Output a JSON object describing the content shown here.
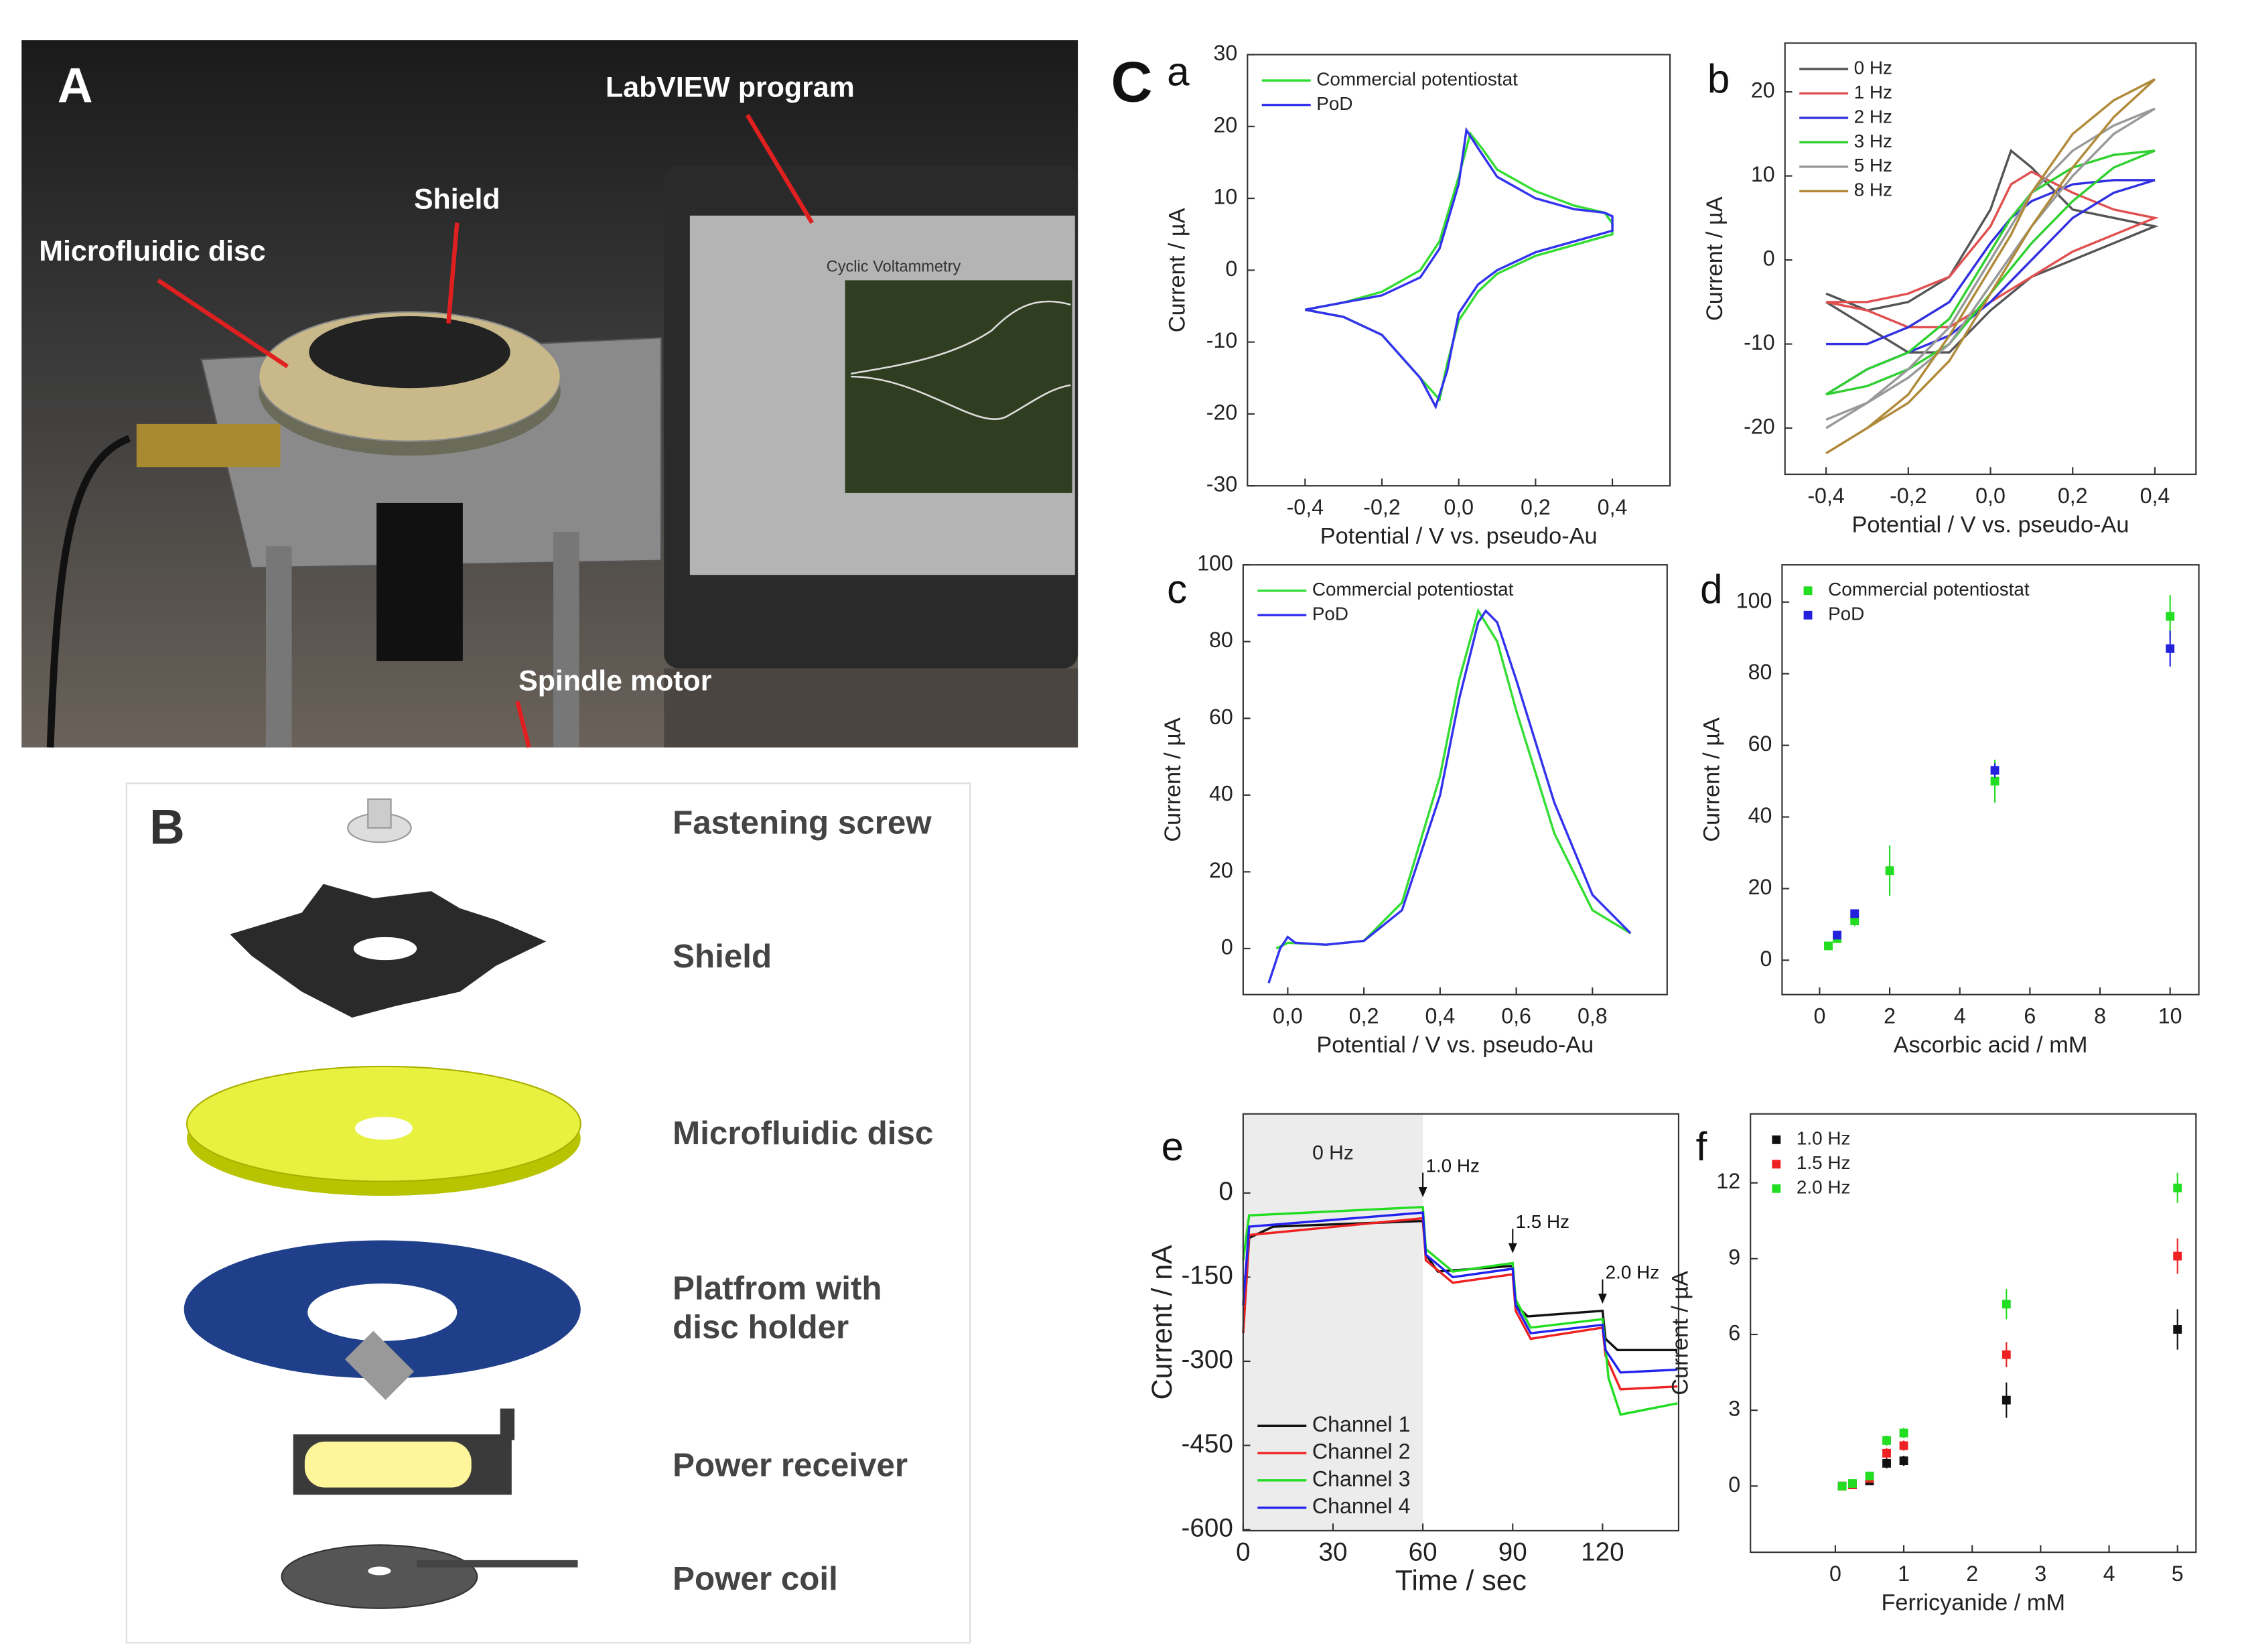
{
  "photo": {
    "label": "A",
    "annotations": [
      "LabVIEW program",
      "Shield",
      "Microfluidic disc",
      "Spindle motor"
    ],
    "screen_title": "Cyclic Voltammetry"
  },
  "diagram": {
    "label": "B",
    "parts": [
      [
        "Fastening screw"
      ],
      [
        "Shield"
      ],
      [
        "Microfluidic disc"
      ],
      [
        "Platfrom with",
        "disc holder"
      ],
      [
        "Power receiver"
      ],
      [
        "Power coil"
      ]
    ]
  },
  "panel_group_label": "C",
  "chart_data": [
    {
      "type": "line",
      "panel_label": "a",
      "xlabel": "Potential / V vs. pseudo-Au",
      "ylabel": "Current / µA",
      "legend": "upper left",
      "xlim": [
        -0.55,
        0.55
      ],
      "xticks": [
        {
          "value": -0.4,
          "label": "-0,4"
        },
        {
          "value": -0.2,
          "label": "-0,2"
        },
        {
          "value": 0,
          "label": "0,0"
        },
        {
          "value": 0.2,
          "label": "0,2"
        },
        {
          "value": 0.4,
          "label": "0,4"
        }
      ],
      "ylim": [
        -30,
        30
      ],
      "yticks": [
        -30,
        -20,
        -10,
        0,
        10,
        20,
        30
      ],
      "series": [
        {
          "name": "Commercial potentiostat",
          "color": "#33dd33",
          "x": [
            -0.4,
            -0.3,
            -0.2,
            -0.1,
            -0.05,
            0,
            0.03,
            0.06,
            0.1,
            0.2,
            0.3,
            0.38,
            0.4,
            0.4,
            0.3,
            0.2,
            0.1,
            0.05,
            0,
            -0.03,
            -0.05,
            -0.1,
            -0.2,
            -0.3,
            -0.4
          ],
          "values": [
            -5.5,
            -4.5,
            -3,
            0,
            4,
            13,
            19,
            17,
            14,
            11,
            9,
            8,
            6.5,
            5,
            3.5,
            2,
            -0.5,
            -3,
            -7,
            -13,
            -18,
            -15,
            -9,
            -6.5,
            -5.5
          ]
        },
        {
          "name": "PoD",
          "color": "#3333ee",
          "x": [
            -0.4,
            -0.3,
            -0.2,
            -0.1,
            -0.05,
            0,
            0.02,
            0.05,
            0.1,
            0.2,
            0.3,
            0.38,
            0.4,
            0.4,
            0.3,
            0.2,
            0.1,
            0.05,
            0,
            -0.03,
            -0.06,
            -0.1,
            -0.2,
            -0.3,
            -0.4
          ],
          "values": [
            -5.5,
            -4.5,
            -3.5,
            -1,
            3,
            12,
            19.5,
            17,
            13,
            10,
            8.5,
            8,
            7.5,
            5.5,
            4,
            2.5,
            0,
            -2,
            -6,
            -14,
            -19,
            -15,
            -9,
            -6.5,
            -5.5
          ]
        }
      ]
    },
    {
      "type": "line",
      "panel_label": "b",
      "xlabel": "Potential / V vs. pseudo-Au",
      "ylabel": "Current / µA",
      "legend": "upper left",
      "xlim": [
        -0.5,
        0.5
      ],
      "xticks": [
        {
          "value": -0.4,
          "label": "-0,4"
        },
        {
          "value": -0.2,
          "label": "-0,2"
        },
        {
          "value": 0,
          "label": "0,0"
        },
        {
          "value": 0.2,
          "label": "0,2"
        },
        {
          "value": 0.4,
          "label": "0,4"
        }
      ],
      "ylim": [
        -25.5,
        25.8
      ],
      "yticks": [
        -20,
        -10,
        0,
        10,
        20
      ],
      "series": [
        {
          "name": "0 Hz",
          "color": "#555555",
          "x": [
            -0.4,
            -0.3,
            -0.2,
            -0.1,
            0,
            0.05,
            0.1,
            0.2,
            0.3,
            0.4,
            0.4,
            0.3,
            0.2,
            0.1,
            0,
            -0.1,
            -0.2,
            -0.3,
            -0.4
          ],
          "values": [
            -4,
            -6,
            -5,
            -2,
            6,
            13,
            11,
            6,
            5,
            4,
            4,
            2,
            0,
            -2,
            -6,
            -11,
            -11,
            -8,
            -5
          ]
        },
        {
          "name": "1 Hz",
          "color": "#e05050",
          "x": [
            -0.4,
            -0.3,
            -0.2,
            -0.1,
            0,
            0.05,
            0.1,
            0.2,
            0.3,
            0.4,
            0.4,
            0.3,
            0.2,
            0.1,
            0,
            -0.1,
            -0.2,
            -0.3,
            -0.4
          ],
          "values": [
            -5,
            -5,
            -4,
            -2,
            4,
            9,
            10.5,
            8,
            6,
            5,
            5,
            3,
            1,
            -2,
            -5,
            -8,
            -8,
            -6,
            -5
          ]
        },
        {
          "name": "2 Hz",
          "color": "#3030e0",
          "x": [
            -0.4,
            -0.3,
            -0.2,
            -0.1,
            0,
            0.05,
            0.1,
            0.2,
            0.3,
            0.4,
            0.4,
            0.3,
            0.2,
            0.1,
            0,
            -0.1,
            -0.2,
            -0.3,
            -0.4
          ],
          "values": [
            -10,
            -10,
            -8,
            -5,
            2,
            5,
            7,
            9,
            9.5,
            9.5,
            9.5,
            8,
            5,
            0,
            -5,
            -9,
            -11,
            -13,
            -16
          ]
        },
        {
          "name": "3 Hz",
          "color": "#30d030",
          "x": [
            -0.4,
            -0.3,
            -0.2,
            -0.1,
            0,
            0.05,
            0.1,
            0.2,
            0.3,
            0.4,
            0.4,
            0.3,
            0.2,
            0.1,
            0,
            -0.1,
            -0.2,
            -0.3,
            -0.4
          ],
          "values": [
            -16,
            -13,
            -11,
            -7,
            1,
            5,
            8,
            11,
            12.5,
            13,
            13,
            11,
            7,
            2,
            -4,
            -10,
            -13,
            -15,
            -16
          ]
        },
        {
          "name": "5 Hz",
          "color": "#999999",
          "x": [
            -0.4,
            -0.3,
            -0.2,
            -0.1,
            0,
            0.05,
            0.1,
            0.2,
            0.3,
            0.4,
            0.4,
            0.3,
            0.2,
            0.1,
            0,
            -0.1,
            -0.2,
            -0.3,
            -0.4
          ],
          "values": [
            -20,
            -17,
            -13,
            -8,
            0,
            4,
            8,
            13,
            16,
            18,
            18,
            15,
            10,
            4,
            -3,
            -10,
            -14,
            -17,
            -19
          ]
        },
        {
          "name": "8 Hz",
          "color": "#b08a3a",
          "x": [
            -0.4,
            -0.3,
            -0.2,
            -0.1,
            0,
            0.05,
            0.1,
            0.2,
            0.3,
            0.4,
            0.4,
            0.3,
            0.2,
            0.1,
            0,
            -0.1,
            -0.2,
            -0.3,
            -0.4
          ],
          "values": [
            -23,
            -20,
            -16,
            -9,
            -1,
            3,
            8,
            15,
            19,
            21.5,
            21.5,
            17,
            11,
            4,
            -4,
            -12,
            -17,
            -20,
            -23
          ]
        }
      ]
    },
    {
      "type": "line",
      "panel_label": "c",
      "xlabel": "Potential / V vs. pseudo-Au",
      "ylabel": "Current / µA",
      "legend": "upper left",
      "xlim": [
        -0.117,
        0.996
      ],
      "xticks": [
        {
          "value": 0,
          "label": "0,0"
        },
        {
          "value": 0.2,
          "label": "0,2"
        },
        {
          "value": 0.4,
          "label": "0,4"
        },
        {
          "value": 0.6,
          "label": "0,6"
        },
        {
          "value": 0.8,
          "label": "0,8"
        }
      ],
      "ylim": [
        -12,
        100
      ],
      "yticks": [
        0,
        20,
        40,
        60,
        80,
        100
      ],
      "series": [
        {
          "name": "Commercial potentiostat",
          "color": "#33dd33",
          "x": [
            -0.03,
            0,
            0.1,
            0.2,
            0.3,
            0.4,
            0.45,
            0.5,
            0.55,
            0.6,
            0.7,
            0.8,
            0.9
          ],
          "values": [
            0,
            1.5,
            1,
            2,
            12,
            45,
            70,
            88,
            80,
            62,
            30,
            10,
            4
          ]
        },
        {
          "name": "PoD",
          "color": "#3333ee",
          "x": [
            -0.05,
            -0.02,
            0,
            0.02,
            0.1,
            0.2,
            0.3,
            0.4,
            0.45,
            0.5,
            0.52,
            0.55,
            0.6,
            0.7,
            0.8,
            0.9
          ],
          "values": [
            -9,
            0,
            3,
            1.5,
            1,
            2,
            10,
            40,
            65,
            85,
            88,
            85,
            70,
            38,
            14,
            4
          ]
        }
      ]
    },
    {
      "type": "scatter",
      "panel_label": "d",
      "xlabel": "Ascorbic acid / mM",
      "ylabel": "Current / µA",
      "legend": "upper left",
      "xlim": [
        -1.07,
        10.82
      ],
      "xticks": [
        0,
        2,
        4,
        6,
        8,
        10
      ],
      "ylim": [
        -9.6,
        110.4
      ],
      "yticks": [
        0,
        20,
        40,
        60,
        80,
        100
      ],
      "x": [
        0.25,
        0.5,
        1,
        2,
        5,
        10
      ],
      "series": [
        {
          "name": "Commercial potentiostat",
          "color": "#22dd22",
          "values": [
            4,
            6,
            11,
            25,
            50,
            96
          ],
          "errors": [
            1,
            1,
            1.5,
            7,
            6,
            6
          ]
        },
        {
          "name": "PoD",
          "color": "#2222dd",
          "values": [
            null,
            7,
            13,
            null,
            53,
            87
          ],
          "errors": [
            null,
            1,
            1,
            null,
            2,
            5
          ]
        }
      ]
    },
    {
      "type": "line",
      "panel_label": "e",
      "xlabel": "Time / sec",
      "ylabel": "Current / nA",
      "legend": "lower left",
      "xlim": [
        0,
        145.4
      ],
      "xticks": [
        0,
        30,
        60,
        90,
        120
      ],
      "ylim": [
        -602,
        141
      ],
      "yticks": [
        -600,
        -450,
        -300,
        -150,
        0
      ],
      "shaded": {
        "x": [
          0,
          60
        ],
        "label": "0 Hz"
      },
      "annotations": [
        {
          "text": "1.0 Hz",
          "x": 60,
          "y": -10
        },
        {
          "text": "1.5 Hz",
          "x": 90,
          "y": -110
        },
        {
          "text": "2.0 Hz",
          "x": 120,
          "y": -200
        }
      ],
      "series": [
        {
          "name": "Channel 1",
          "color": "#111111",
          "x": [
            0,
            2,
            10,
            60,
            61,
            65,
            90,
            91,
            95,
            120,
            121,
            125,
            145
          ],
          "values": [
            -250,
            -80,
            -60,
            -50,
            -110,
            -140,
            -130,
            -200,
            -220,
            -210,
            -260,
            -280,
            -280
          ]
        },
        {
          "name": "Channel 2",
          "color": "#ee2222",
          "x": [
            0,
            2,
            60,
            61,
            70,
            90,
            91,
            96,
            120,
            121,
            126,
            145
          ],
          "values": [
            -250,
            -75,
            -45,
            -120,
            -160,
            -145,
            -210,
            -260,
            -240,
            -290,
            -350,
            -345
          ]
        },
        {
          "name": "Channel 3",
          "color": "#22dd22",
          "x": [
            0,
            2,
            60,
            61,
            70,
            90,
            91,
            96,
            120,
            122,
            126,
            145
          ],
          "values": [
            -120,
            -40,
            -25,
            -100,
            -140,
            -125,
            -190,
            -240,
            -225,
            -330,
            -395,
            -375
          ]
        },
        {
          "name": "Channel 4",
          "color": "#2222ee",
          "x": [
            0,
            2,
            60,
            61,
            70,
            90,
            91,
            96,
            120,
            121,
            126,
            145
          ],
          "values": [
            -200,
            -60,
            -35,
            -110,
            -150,
            -135,
            -200,
            -250,
            -235,
            -280,
            -320,
            -315
          ]
        }
      ]
    },
    {
      "type": "scatter",
      "panel_label": "f",
      "xlabel": "Ferricyanide / mM",
      "ylabel": "Current / µA",
      "legend": "upper left",
      "xlim": [
        -1.24,
        5.27
      ],
      "xticks": [
        0,
        1,
        2,
        3,
        4,
        5
      ],
      "ylim": [
        -2.62,
        14.73
      ],
      "yticks": [
        0,
        3,
        6,
        9,
        12
      ],
      "x": [
        0.1,
        0.25,
        0.5,
        0.75,
        1,
        2.5,
        5
      ],
      "series": [
        {
          "name": "1.0 Hz",
          "color": "#111111",
          "values": [
            0,
            0.05,
            0.2,
            0.9,
            1,
            3.4,
            6.2
          ],
          "errors": [
            0.1,
            0.1,
            0.1,
            0.2,
            0.2,
            0.7,
            0.8
          ]
        },
        {
          "name": "1.5 Hz",
          "color": "#ee2222",
          "values": [
            0,
            0.05,
            0.3,
            1.3,
            1.6,
            5.2,
            9.1
          ],
          "errors": [
            0.1,
            0.1,
            0.1,
            0.2,
            0.2,
            0.5,
            0.7
          ]
        },
        {
          "name": "2.0 Hz",
          "color": "#22dd22",
          "values": [
            0,
            0.1,
            0.4,
            1.8,
            2.1,
            7.2,
            11.8
          ],
          "errors": [
            0.1,
            0.1,
            0.1,
            0.2,
            0.2,
            0.6,
            0.6
          ]
        }
      ]
    }
  ]
}
